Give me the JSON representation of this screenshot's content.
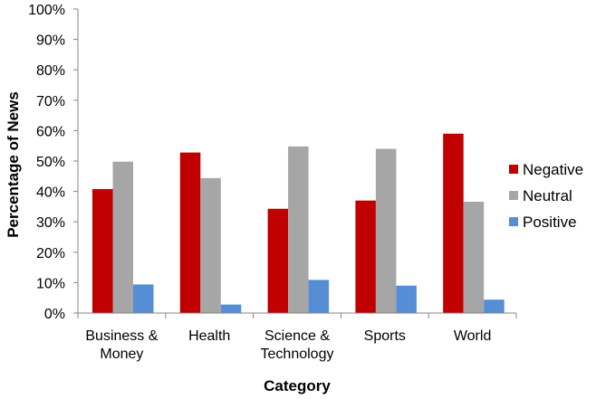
{
  "chart_data": {
    "type": "bar",
    "title": "",
    "xlabel": "Category",
    "ylabel": "Percentage of News",
    "ylim": [
      0,
      100
    ],
    "yticks": [
      "0%",
      "10%",
      "20%",
      "30%",
      "40%",
      "50%",
      "60%",
      "70%",
      "80%",
      "90%",
      "100%"
    ],
    "yticks_values": [
      0,
      10,
      20,
      30,
      40,
      50,
      60,
      70,
      80,
      90,
      100
    ],
    "grid": false,
    "legend_position": "right",
    "categories": [
      [
        "Business &",
        "Money"
      ],
      [
        "Health"
      ],
      [
        "Science &",
        "Technology"
      ],
      [
        "Sports"
      ],
      [
        "World"
      ]
    ],
    "series": [
      {
        "name": "Negative",
        "color": "#C00000",
        "values": [
          40.8,
          52.8,
          34.3,
          37.0,
          59.0
        ]
      },
      {
        "name": "Neutral",
        "color": "#A6A6A6",
        "values": [
          49.8,
          44.4,
          54.8,
          54.0,
          36.6
        ]
      },
      {
        "name": "Positive",
        "color": "#558ED5",
        "values": [
          9.4,
          2.8,
          10.9,
          9.0,
          4.4
        ]
      }
    ]
  }
}
